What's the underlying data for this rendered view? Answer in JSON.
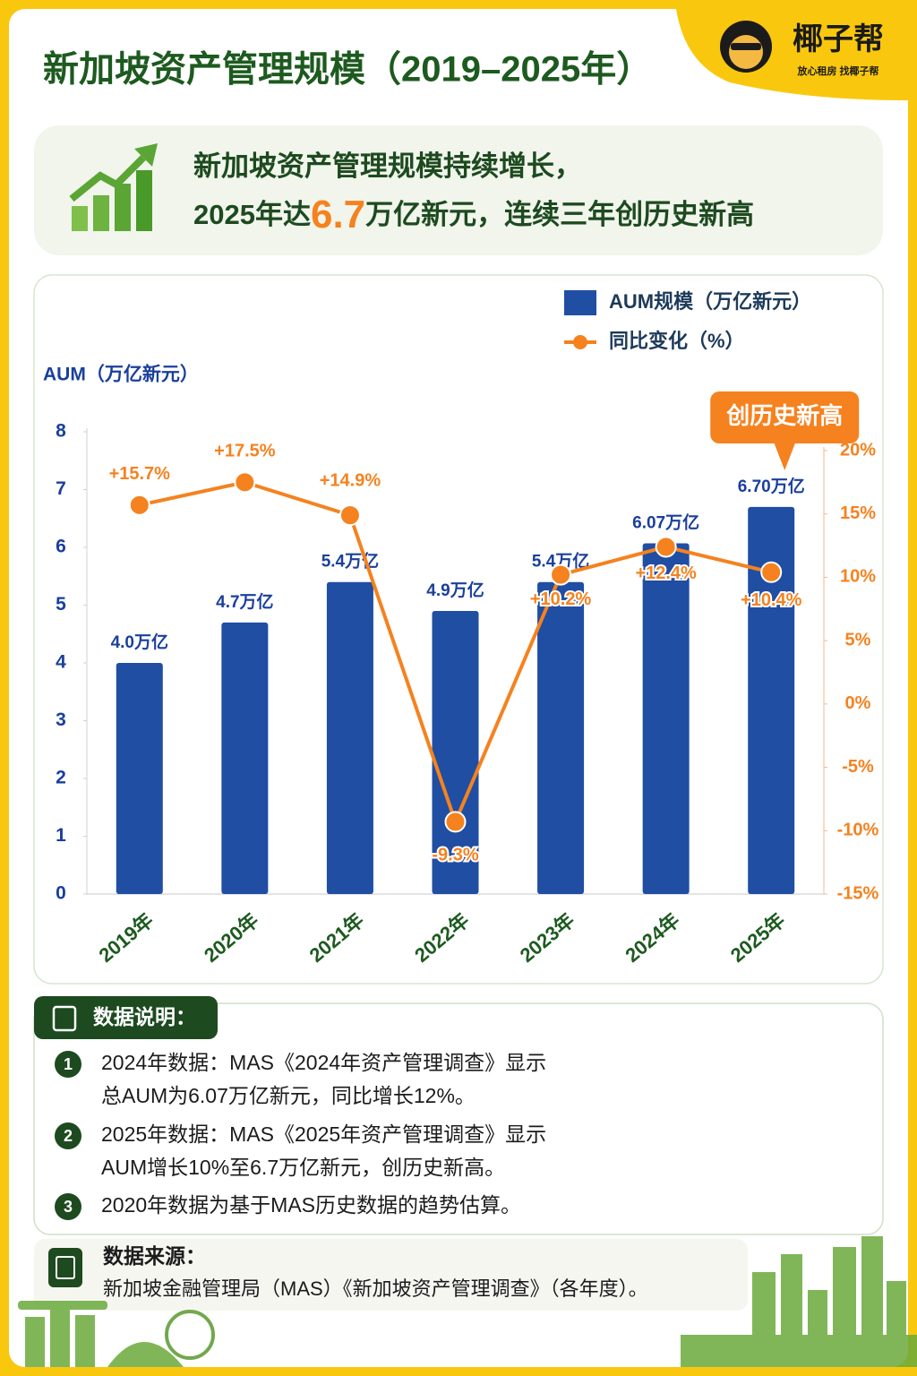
{
  "header": {
    "title": "新加坡资产管理规模（2019–2025年）",
    "brand": "椰子帮",
    "slogan": "放心租房 找椰子帮"
  },
  "summary": {
    "line1": "新加坡资产管理规模持续增长，",
    "line2_before": "2025年达",
    "line2_highlight": "6.7",
    "line2_after": "万亿新元，连续三年创历史新高"
  },
  "chart_data": {
    "type": "bar",
    "y_axis_label": "AUM（万亿新元）",
    "annotation": "创历史新高",
    "categories": [
      "2019年",
      "2020年",
      "2021年",
      "2022年",
      "2023年",
      "2024年",
      "2025年"
    ],
    "series": [
      {
        "name": "AUM规模（万亿新元）",
        "color": "#1f4ea3",
        "values": [
          4.0,
          4.7,
          5.4,
          4.9,
          5.4,
          6.07,
          6.7
        ],
        "value_labels": [
          "4.0万亿",
          "4.7万亿",
          "5.4万亿",
          "4.9万亿",
          "5.4万亿",
          "6.07万亿",
          "6.70万亿"
        ]
      },
      {
        "name": "同比变化（%）",
        "type": "line",
        "axis": "y2",
        "color": "#f5821f",
        "values": [
          15.7,
          17.5,
          14.9,
          -9.3,
          10.2,
          12.4,
          10.4
        ],
        "value_labels": [
          "+15.7%",
          "+17.5%",
          "+14.9%",
          "-9.3%",
          "+10.2%",
          "+12.4%",
          "+10.4%"
        ]
      }
    ],
    "ylim": [
      0,
      8
    ],
    "yticks": [
      0,
      1,
      2,
      3,
      4,
      5,
      6,
      7,
      8
    ],
    "y2lim": [
      -15,
      20
    ],
    "y2ticks": [
      {
        "value": -15,
        "label": "-15%"
      },
      {
        "value": -10,
        "label": "-10%"
      },
      {
        "value": -5,
        "label": "-5%"
      },
      {
        "value": 0,
        "label": "0%"
      },
      {
        "value": 5,
        "label": "5%"
      },
      {
        "value": 10,
        "label": "10%"
      },
      {
        "value": 15,
        "label": "15%"
      },
      {
        "value": 20,
        "label": "20%"
      }
    ],
    "legend": "top-right"
  },
  "notes": {
    "title": "数据说明：",
    "items": [
      {
        "number": "1",
        "lines": [
          "2024年数据：MAS《2024年资产管理调查》显示",
          "总AUM为6.07万亿新元，同比增长12%。"
        ]
      },
      {
        "number": "2",
        "lines": [
          "2025年数据：MAS《2025年资产管理调查》显示",
          "AUM增长10%至6.7万亿新元，创历史新高。"
        ]
      },
      {
        "number": "3",
        "lines": [
          "2020年数据为基于MAS历史数据的趋势估算。"
        ]
      }
    ]
  },
  "source": {
    "title": "数据来源：",
    "text": "新加坡金融管理局（MAS）《新加坡资产管理调查》（各年度）。"
  }
}
